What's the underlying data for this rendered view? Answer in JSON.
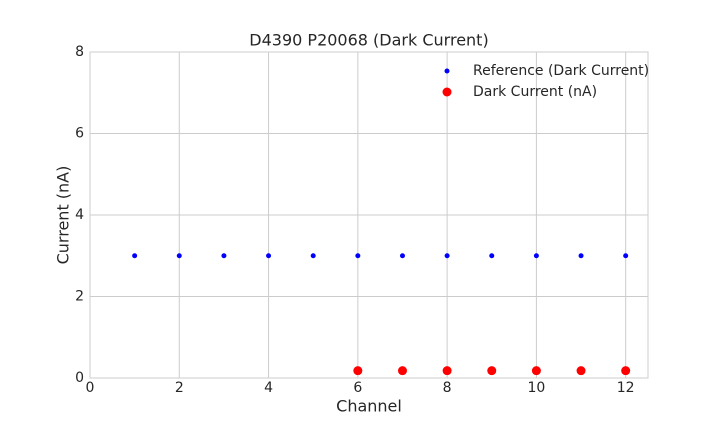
{
  "chart_data": {
    "type": "scatter",
    "title": "D4390 P20068 (Dark Current)",
    "x_label": "Channel",
    "y_label": "Current (nA)",
    "series": [
      {
        "name": "Reference (Dark Current)",
        "color": "#0000ff",
        "x": [
          1,
          2,
          3,
          4,
          5,
          6,
          7,
          8,
          9,
          10,
          11,
          12
        ],
        "values": [
          3,
          3,
          3,
          3,
          3,
          3,
          3,
          3,
          3,
          3,
          3,
          3
        ]
      },
      {
        "name": "Dark Current (nA)",
        "color": "#ff0000",
        "x": [
          6,
          7,
          8,
          9,
          10,
          11,
          12
        ],
        "values": [
          0.18,
          0.18,
          0.18,
          0.18,
          0.18,
          0.18,
          0.18
        ]
      }
    ],
    "xlim": [
      0,
      12.5
    ],
    "xticks": [
      0,
      2,
      4,
      6,
      8,
      10,
      12
    ],
    "ylim": [
      0,
      8
    ],
    "yticks": [
      0,
      2,
      4,
      6,
      8
    ],
    "grid": true,
    "legend": "upper right"
  }
}
